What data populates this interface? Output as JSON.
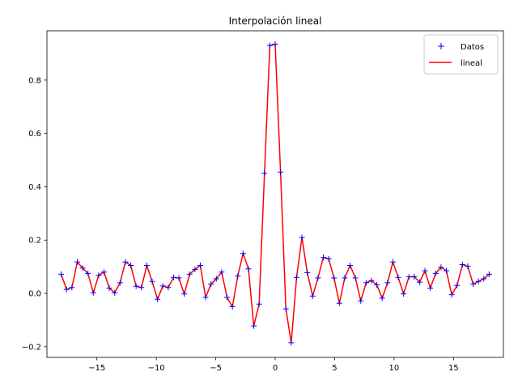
{
  "chart_data": {
    "type": "line",
    "title": "Interpolación lineal",
    "xlabel": "",
    "ylabel": "",
    "xlim": [
      -19.2,
      19.2
    ],
    "ylim": [
      -0.24,
      0.985
    ],
    "xticks": [
      -15,
      -10,
      -5,
      0,
      5,
      10,
      15
    ],
    "xtick_labels": [
      "−15",
      "−10",
      "−5",
      "0",
      "5",
      "10",
      "15"
    ],
    "yticks": [
      -0.2,
      0.0,
      0.2,
      0.4,
      0.6,
      0.8
    ],
    "ytick_labels": [
      "−0.2",
      "0.0",
      "0.2",
      "0.4",
      "0.6",
      "0.8"
    ],
    "grid": false,
    "legend": {
      "placement": "top-right",
      "entries": [
        "Datos",
        "lineal"
      ]
    },
    "series": [
      {
        "name": "Datos",
        "style": "markers",
        "marker": "+",
        "color": "#0000ff",
        "x": [
          -18.0,
          -17.55,
          -17.1,
          -16.65,
          -16.2,
          -15.75,
          -15.3,
          -14.85,
          -14.4,
          -13.95,
          -13.5,
          -13.05,
          -12.6,
          -12.15,
          -11.7,
          -11.25,
          -10.8,
          -10.35,
          -9.9,
          -9.45,
          -9.0,
          -8.55,
          -8.1,
          -7.65,
          -7.2,
          -6.75,
          -6.3,
          -5.85,
          -5.4,
          -4.95,
          -4.5,
          -4.05,
          -3.6,
          -3.15,
          -2.7,
          -2.25,
          -1.8,
          -1.35,
          -0.9,
          -0.45,
          0.0,
          0.45,
          0.9,
          1.35,
          1.8,
          2.25,
          2.7,
          3.15,
          3.6,
          4.05,
          4.5,
          4.95,
          5.4,
          5.85,
          6.3,
          6.75,
          7.2,
          7.65,
          8.1,
          8.55,
          9.0,
          9.45,
          9.9,
          10.35,
          10.8,
          11.25,
          11.7,
          12.15,
          12.6,
          13.05,
          13.5,
          13.95,
          14.4,
          14.85,
          15.3,
          15.75,
          16.2,
          16.65,
          17.1,
          17.55,
          18.0
        ],
        "y": [
          0.072,
          0.015,
          0.022,
          0.118,
          0.095,
          0.075,
          0.002,
          0.068,
          0.08,
          0.02,
          0.002,
          0.04,
          0.118,
          0.105,
          0.027,
          0.022,
          0.105,
          0.045,
          -0.022,
          0.028,
          0.022,
          0.06,
          0.058,
          -0.002,
          0.072,
          0.09,
          0.105,
          -0.015,
          0.035,
          0.055,
          0.08,
          -0.015,
          -0.05,
          0.065,
          0.15,
          0.092,
          -0.122,
          -0.04,
          0.45,
          0.93,
          0.935,
          0.455,
          -0.058,
          -0.185,
          0.06,
          0.21,
          0.078,
          -0.01,
          0.058,
          0.135,
          0.13,
          0.058,
          -0.037,
          0.058,
          0.105,
          0.058,
          -0.028,
          0.04,
          0.048,
          0.032,
          -0.018,
          0.04,
          0.118,
          0.06,
          -0.002,
          0.062,
          0.063,
          0.042,
          0.085,
          0.02,
          0.075,
          0.098,
          0.085,
          -0.005,
          0.03,
          0.108,
          0.102,
          0.035,
          0.045,
          0.055,
          0.072
        ]
      },
      {
        "name": "lineal",
        "style": "line",
        "color": "#ff0000",
        "same_points_as": "Datos"
      }
    ]
  }
}
